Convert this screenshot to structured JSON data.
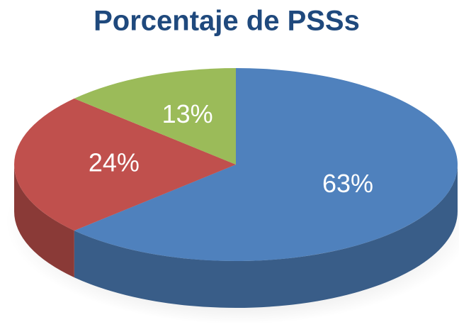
{
  "chart_data": {
    "type": "pie",
    "title": "Porcentaje de PSSs",
    "values": [
      63,
      24,
      13
    ],
    "value_labels": [
      "63%",
      "24%",
      "13%"
    ],
    "colors": [
      "#4f81bd",
      "#c0504d",
      "#9bbb59"
    ]
  }
}
